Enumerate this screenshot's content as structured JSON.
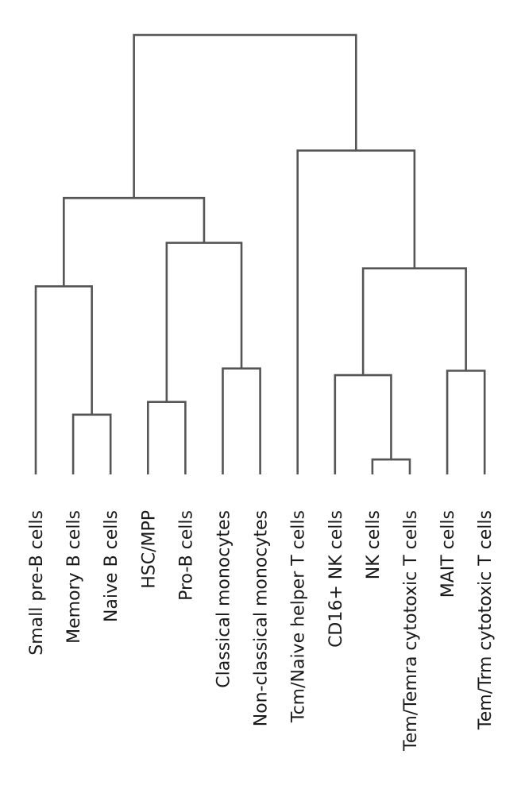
{
  "chart_data": {
    "type": "dendrogram",
    "orientation": "top-down",
    "leaves": [
      "Small pre-B cells",
      "Memory B cells",
      "Naive B cells",
      "HSC/MPP",
      "Pro-B cells",
      "Classical monocytes",
      "Non-classical monocytes",
      "Tcm/Naive helper T cells",
      "CD16+ NK cells",
      "NK cells",
      "Tem/Temra cytotoxic T cells",
      "MAIT cells",
      "Tem/Trm cytotoxic T cells"
    ],
    "merges": [
      {
        "id": "n0",
        "children": [
          "Memory B cells",
          "Naive B cells"
        ],
        "height": 0.136
      },
      {
        "id": "n1",
        "children": [
          "Small pre-B cells",
          "n0"
        ],
        "height": 0.428
      },
      {
        "id": "n2",
        "children": [
          "HSC/MPP",
          "Pro-B cells"
        ],
        "height": 0.165
      },
      {
        "id": "n3",
        "children": [
          "Classical monocytes",
          "Non-classical monocytes"
        ],
        "height": 0.241
      },
      {
        "id": "n4",
        "children": [
          "n2",
          "n3"
        ],
        "height": 0.527
      },
      {
        "id": "n5",
        "children": [
          "n1",
          "n4"
        ],
        "height": 0.629
      },
      {
        "id": "n6",
        "children": [
          "NK cells",
          "Tem/Temra cytotoxic T cells"
        ],
        "height": 0.034
      },
      {
        "id": "n7",
        "children": [
          "CD16+ NK cells",
          "n6"
        ],
        "height": 0.226
      },
      {
        "id": "n8",
        "children": [
          "MAIT cells",
          "Tem/Trm cytotoxic T cells"
        ],
        "height": 0.236
      },
      {
        "id": "n9",
        "children": [
          "n7",
          "n8"
        ],
        "height": 0.469
      },
      {
        "id": "n10",
        "children": [
          "Tcm/Naive helper T cells",
          "n9"
        ],
        "height": 0.737
      },
      {
        "id": "n11",
        "children": [
          "n5",
          "n10"
        ],
        "height": 1.0
      }
    ],
    "line_color": "#555555",
    "label_color": "#1a1a1a"
  }
}
